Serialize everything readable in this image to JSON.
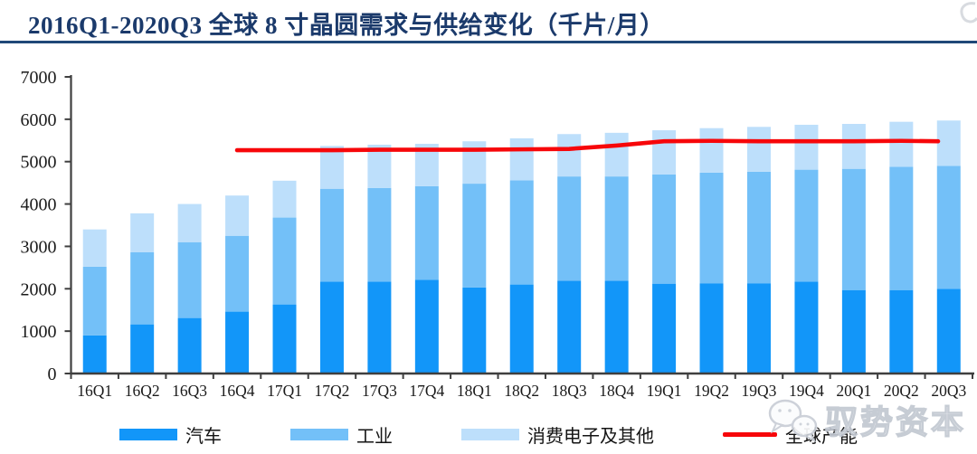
{
  "title": "2016Q1-2020Q3 全球 8 寸晶圆需求与供给变化（千片/月）",
  "watermark": "驭势资本",
  "colors": {
    "title_navy": "#1b3a6b",
    "rule_navy": "#1f4878",
    "bar_auto": "#1296f9",
    "bar_industrial": "#73c0f8",
    "bar_consumer": "#bddffb",
    "capacity_red": "#f7070a",
    "axis": "#3f3f3f",
    "tick_label": "#1a1a1a",
    "watermark_gray": "#c2c8d1"
  },
  "chart_data": {
    "type": "bar",
    "subtype": "stacked-bar-with-line",
    "title": "2016Q1-2020Q3 全球 8 寸晶圆需求与供给变化（千片/月）",
    "xlabel": "",
    "ylabel": "",
    "ylim": [
      0,
      7000
    ],
    "yticks": [
      0,
      1000,
      2000,
      3000,
      4000,
      5000,
      6000,
      7000
    ],
    "grid": false,
    "legend_position": "bottom",
    "categories": [
      "16Q1",
      "16Q2",
      "16Q3",
      "16Q4",
      "17Q1",
      "17Q2",
      "17Q3",
      "17Q4",
      "18Q1",
      "18Q2",
      "18Q3",
      "18Q4",
      "19Q1",
      "19Q2",
      "19Q3",
      "19Q4",
      "20Q1",
      "20Q2",
      "20Q3"
    ],
    "series": [
      {
        "name": "汽车",
        "type": "bar",
        "color": "#1296f9",
        "values": [
          900,
          1160,
          1310,
          1460,
          1630,
          2170,
          2170,
          2210,
          2030,
          2100,
          2190,
          2190,
          2120,
          2130,
          2130,
          2170,
          1970,
          1970,
          2000
        ]
      },
      {
        "name": "工业",
        "type": "bar",
        "color": "#73c0f8",
        "values": [
          1620,
          1700,
          1790,
          1790,
          2050,
          2190,
          2210,
          2210,
          2450,
          2460,
          2460,
          2460,
          2580,
          2610,
          2630,
          2640,
          2860,
          2910,
          2900
        ]
      },
      {
        "name": "消费电子及其他",
        "type": "bar",
        "color": "#bddffb",
        "values": [
          880,
          920,
          900,
          950,
          870,
          1010,
          1020,
          1000,
          1000,
          990,
          1000,
          1030,
          1040,
          1050,
          1060,
          1060,
          1060,
          1060,
          1070
        ]
      },
      {
        "name": "全球产能",
        "type": "line",
        "color": "#f7070a",
        "values": [
          null,
          null,
          null,
          5270,
          5270,
          5270,
          5280,
          5280,
          5280,
          5290,
          5300,
          5380,
          5480,
          5490,
          5480,
          5480,
          5480,
          5490,
          5480
        ]
      }
    ]
  }
}
